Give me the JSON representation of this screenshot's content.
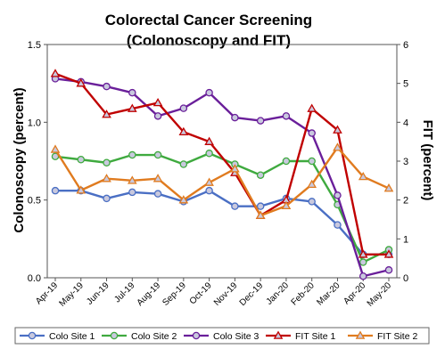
{
  "chart_data": {
    "type": "line",
    "title": [
      "Colorectal Cancer Screening",
      "(Colonoscopy and FIT)"
    ],
    "ylabel_left": "Colonoscopy (percent)",
    "ylabel_right": "FIT (percent)",
    "ylim_left": [
      0,
      1.5
    ],
    "ylim_right": [
      0,
      6
    ],
    "yticks_left": [
      "0.0",
      "0.5",
      "1.0",
      "1.5"
    ],
    "yticks_right": [
      "0",
      "1",
      "2",
      "3",
      "4",
      "5",
      "6"
    ],
    "categories": [
      "Apr-19",
      "May-19",
      "Jun-19",
      "Jul-19",
      "Aug-19",
      "Sep-19",
      "Oct-19",
      "Nov-19",
      "Dec-19",
      "Jan-20",
      "Feb-20",
      "Mar-20",
      "Apr-20",
      "May-20"
    ],
    "grid": false,
    "legend_position": "bottom",
    "series": [
      {
        "name": "Colo Site 1",
        "axis": "left",
        "color": "#4a6fc4",
        "marker": "circle",
        "values": [
          0.56,
          0.56,
          0.51,
          0.55,
          0.54,
          0.49,
          0.56,
          0.46,
          0.46,
          0.51,
          0.49,
          0.34,
          0.15,
          0.15
        ]
      },
      {
        "name": "Colo Site 2",
        "axis": "left",
        "color": "#3faa3f",
        "marker": "circle",
        "values": [
          0.78,
          0.76,
          0.74,
          0.79,
          0.79,
          0.73,
          0.8,
          0.73,
          0.66,
          0.75,
          0.75,
          0.47,
          0.1,
          0.18
        ]
      },
      {
        "name": "Colo Site 3",
        "axis": "left",
        "color": "#6a1f9a",
        "marker": "circle",
        "values": [
          1.28,
          1.26,
          1.23,
          1.19,
          1.04,
          1.09,
          1.19,
          1.03,
          1.01,
          1.04,
          0.93,
          0.53,
          0.01,
          0.05
        ]
      },
      {
        "name": "FIT Site 1",
        "axis": "right",
        "color": "#c00000",
        "marker": "triangle",
        "values": [
          5.25,
          5.0,
          4.2,
          4.35,
          4.5,
          3.75,
          3.5,
          2.7,
          1.6,
          2.0,
          4.35,
          3.8,
          0.6,
          0.6
        ]
      },
      {
        "name": "FIT Site 2",
        "axis": "right",
        "color": "#e07b1f",
        "marker": "triangle",
        "values": [
          3.3,
          2.25,
          2.55,
          2.5,
          2.55,
          2.0,
          2.45,
          2.8,
          1.6,
          1.85,
          2.4,
          3.35,
          2.6,
          2.3
        ]
      }
    ]
  }
}
